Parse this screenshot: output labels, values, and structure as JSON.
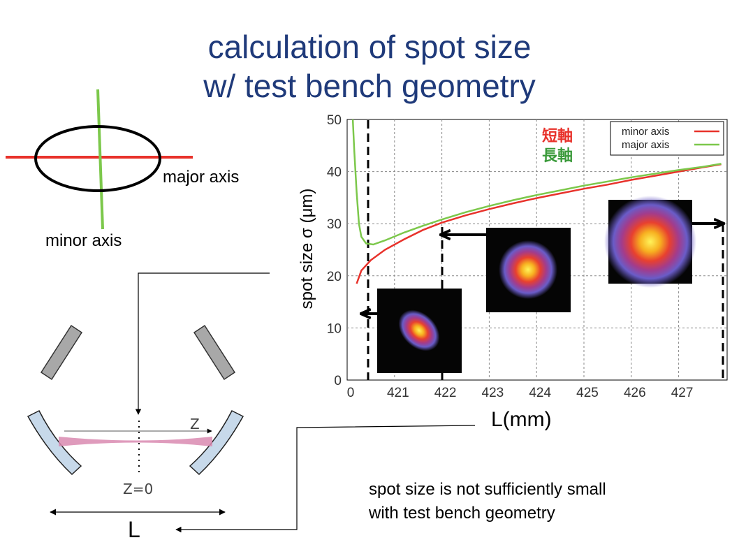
{
  "title": {
    "line1": "calculation of spot size",
    "line2": "w/ test bench geometry"
  },
  "ellipse_diagram": {
    "major_label": "major axis",
    "minor_label": "minor axis"
  },
  "cavity_diagram": {
    "z_label": "Z",
    "z0_label": "Z=0",
    "length_label": "L"
  },
  "note": {
    "line1": "spot size is not sufficiently small",
    "line2": "with test bench geometry"
  },
  "colors": {
    "title": "#1f3a7a",
    "minor_axis": "#e8322b",
    "major_axis": "#7cc84b",
    "mirror_fill": "#c7d9ea",
    "beam": "#d98ab0"
  },
  "chart_data": {
    "type": "line",
    "xlabel": "L(mm)",
    "ylabel": "spot size σ (μm)",
    "x_tick_labels": [
      "0",
      "421",
      "422",
      "423",
      "424",
      "425",
      "426",
      "427"
    ],
    "y_ticks": [
      0,
      10,
      20,
      30,
      40,
      50
    ],
    "ylim": [
      0,
      50
    ],
    "annotations_jp": {
      "minor": "短軸",
      "major": "長軸"
    },
    "legend_position": "top-right",
    "grid": true,
    "series": [
      {
        "name": "minor axis",
        "color": "#e8322b",
        "points": [
          [
            420.2,
            18.5
          ],
          [
            420.3,
            21
          ],
          [
            420.5,
            23
          ],
          [
            420.8,
            25
          ],
          [
            421.2,
            27
          ],
          [
            421.6,
            28.8
          ],
          [
            422.0,
            30.2
          ],
          [
            422.5,
            31.6
          ],
          [
            423.0,
            32.8
          ],
          [
            423.5,
            33.9
          ],
          [
            424.0,
            34.9
          ],
          [
            424.5,
            35.8
          ],
          [
            425.0,
            36.7
          ],
          [
            425.5,
            37.5
          ],
          [
            426.0,
            38.4
          ],
          [
            426.5,
            39.2
          ],
          [
            427.0,
            40.0
          ],
          [
            427.5,
            40.8
          ],
          [
            427.9,
            41.4
          ]
        ]
      },
      {
        "name": "major axis",
        "color": "#7cc84b",
        "points": [
          [
            420.12,
            50
          ],
          [
            420.15,
            44
          ],
          [
            420.2,
            36
          ],
          [
            420.25,
            30
          ],
          [
            420.3,
            27.5
          ],
          [
            420.4,
            26.2
          ],
          [
            420.55,
            26
          ],
          [
            420.8,
            26.8
          ],
          [
            421.2,
            28.3
          ],
          [
            421.6,
            29.6
          ],
          [
            422.0,
            30.8
          ],
          [
            422.5,
            32.2
          ],
          [
            423.0,
            33.4
          ],
          [
            423.5,
            34.5
          ],
          [
            424.0,
            35.5
          ],
          [
            424.5,
            36.4
          ],
          [
            425.0,
            37.3
          ],
          [
            425.5,
            38.1
          ],
          [
            426.0,
            38.9
          ],
          [
            426.5,
            39.6
          ],
          [
            427.0,
            40.3
          ],
          [
            427.5,
            40.9
          ],
          [
            427.9,
            41.5
          ]
        ]
      }
    ]
  }
}
